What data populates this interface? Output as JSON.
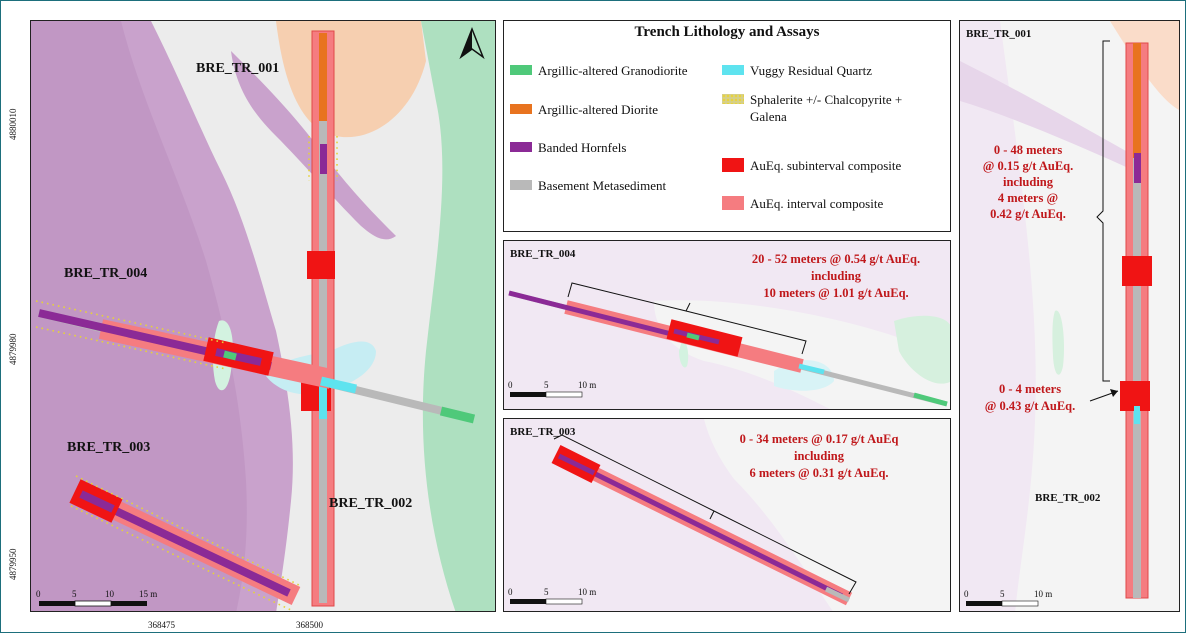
{
  "main_map": {
    "labels": {
      "tr001": "BRE_TR_001",
      "tr004": "BRE_TR_004",
      "tr003": "BRE_TR_003",
      "tr002": "BRE_TR_002"
    },
    "y_ticks": [
      "4880010",
      "4879980",
      "4879950"
    ],
    "x_ticks": [
      "368475",
      "368500"
    ],
    "scale": [
      "0",
      "5",
      "10",
      "15 m"
    ]
  },
  "legend": {
    "title": "Trench Lithology and Assays",
    "items": [
      {
        "label": "Argillic-altered Granodiorite",
        "color": "#4fc97a"
      },
      {
        "label": "Argillic-altered Diorite",
        "color": "#e8731f"
      },
      {
        "label": "Banded Hornfels",
        "color": "#8b2a96"
      },
      {
        "label": "Basement Metasediment",
        "color": "#b9b9b9"
      },
      {
        "label": "Vuggy Residual Quartz",
        "color": "#5ee3ef"
      },
      {
        "label": "Sphalerite +/- Chalcopyrite + Galena",
        "color": "#d6d08a"
      },
      {
        "label": "AuEq. subinterval composite",
        "color": "#f01414"
      },
      {
        "label": "AuEq. interval composite",
        "color": "#f57c80"
      }
    ]
  },
  "inset_004": {
    "title": "BRE_TR_004",
    "line1": "20 - 52 meters @ 0.54 g/t AuEq.",
    "line2": "including",
    "line3": "10 meters @ 1.01 g/t AuEq.",
    "scale": [
      "0",
      "5",
      "10 m"
    ]
  },
  "inset_003": {
    "title": "BRE_TR_003",
    "line1": "0 - 34 meters @ 0.17 g/t AuEq",
    "line2": "including",
    "line3": "6 meters @ 0.31 g/t AuEq.",
    "scale": [
      "0",
      "5",
      "10 m"
    ]
  },
  "inset_001": {
    "title": "BRE_TR_001",
    "a1": "0 - 48 meters",
    "a2": "@ 0.15 g/t AuEq.",
    "a3": "including",
    "a4": "4 meters @",
    "a5": "0.42 g/t AuEq.",
    "b1": "0 - 4 meters",
    "b2": "@ 0.43 g/t AuEq.",
    "sub": "BRE_TR_002",
    "scale": [
      "0",
      "5",
      "10 m"
    ]
  }
}
